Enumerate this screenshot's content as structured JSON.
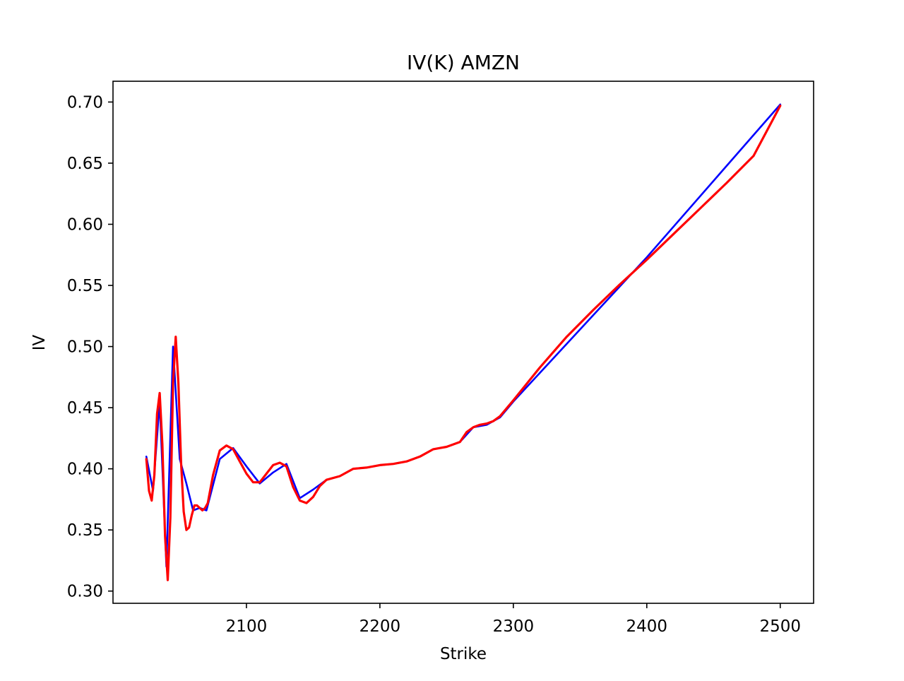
{
  "chart_data": {
    "type": "line",
    "title": "IV(K) AMZN",
    "xlabel": "Strike",
    "ylabel": "IV",
    "xlim": [
      2000,
      2525
    ],
    "ylim": [
      0.29,
      0.717
    ],
    "grid": false,
    "legend": null,
    "x_ticks": [
      2100,
      2200,
      2300,
      2400,
      2500
    ],
    "x_tick_labels": [
      "2100",
      "2200",
      "2300",
      "2400",
      "2500"
    ],
    "y_ticks": [
      0.3,
      0.35,
      0.4,
      0.45,
      0.5,
      0.55,
      0.6,
      0.65,
      0.7
    ],
    "y_tick_labels": [
      "0.30",
      "0.35",
      "0.40",
      "0.45",
      "0.50",
      "0.55",
      "0.60",
      "0.65",
      "0.70"
    ],
    "series": [
      {
        "color": "#0000ff",
        "x": [
          2025,
          2030,
          2035,
          2040,
          2045,
          2050,
          2055,
          2060,
          2065,
          2070,
          2080,
          2090,
          2100,
          2110,
          2120,
          2130,
          2140,
          2150,
          2160,
          2170,
          2180,
          2190,
          2200,
          2210,
          2220,
          2230,
          2240,
          2250,
          2260,
          2270,
          2280,
          2290,
          2300,
          2400,
          2500
        ],
        "y": [
          0.41,
          0.382,
          0.455,
          0.32,
          0.5,
          0.408,
          0.388,
          0.366,
          0.368,
          0.366,
          0.408,
          0.417,
          0.402,
          0.388,
          0.397,
          0.404,
          0.376,
          0.383,
          0.391,
          0.394,
          0.4,
          0.401,
          0.403,
          0.404,
          0.406,
          0.41,
          0.416,
          0.418,
          0.422,
          0.434,
          0.436,
          0.442,
          0.455,
          0.573,
          0.698
        ]
      },
      {
        "color": "#ff0000",
        "x": [
          2025,
          2027,
          2029,
          2031,
          2033,
          2035,
          2037,
          2039,
          2041,
          2043,
          2045,
          2047,
          2049,
          2051,
          2053,
          2055,
          2057,
          2059,
          2061,
          2063,
          2065,
          2067,
          2069,
          2071,
          2075,
          2080,
          2085,
          2090,
          2095,
          2100,
          2105,
          2110,
          2115,
          2120,
          2125,
          2130,
          2135,
          2140,
          2145,
          2150,
          2155,
          2160,
          2170,
          2180,
          2190,
          2200,
          2210,
          2220,
          2230,
          2240,
          2250,
          2260,
          2265,
          2270,
          2275,
          2280,
          2285,
          2290,
          2300,
          2320,
          2340,
          2360,
          2380,
          2400,
          2420,
          2440,
          2460,
          2480,
          2500
        ],
        "y": [
          0.408,
          0.382,
          0.374,
          0.395,
          0.445,
          0.462,
          0.42,
          0.345,
          0.309,
          0.36,
          0.47,
          0.508,
          0.47,
          0.405,
          0.365,
          0.35,
          0.352,
          0.362,
          0.37,
          0.37,
          0.368,
          0.366,
          0.368,
          0.372,
          0.395,
          0.415,
          0.419,
          0.416,
          0.406,
          0.396,
          0.389,
          0.389,
          0.396,
          0.403,
          0.405,
          0.402,
          0.385,
          0.374,
          0.372,
          0.377,
          0.386,
          0.391,
          0.394,
          0.4,
          0.401,
          0.403,
          0.404,
          0.406,
          0.41,
          0.416,
          0.418,
          0.422,
          0.43,
          0.434,
          0.436,
          0.437,
          0.439,
          0.443,
          0.456,
          0.483,
          0.508,
          0.53,
          0.551,
          0.571,
          0.592,
          0.613,
          0.634,
          0.656,
          0.697
        ]
      }
    ]
  }
}
